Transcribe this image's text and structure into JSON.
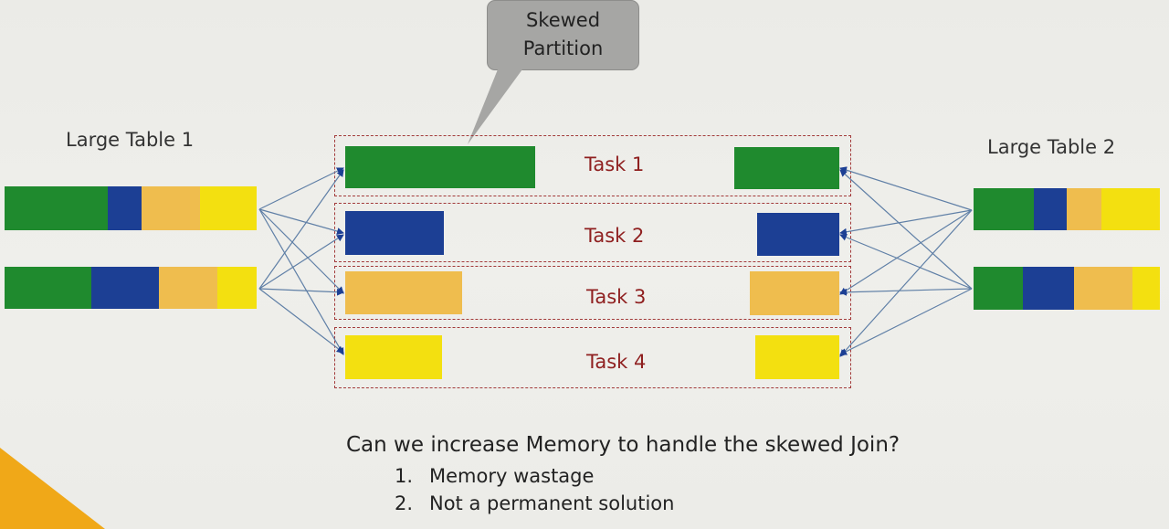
{
  "left_table": {
    "label": "Large Table 1"
  },
  "right_table": {
    "label": "Large Table 2"
  },
  "callout": {
    "line1": "Skewed",
    "line2": "Partition"
  },
  "tasks": [
    {
      "label": "Task 1",
      "color": "#1f8a2e"
    },
    {
      "label": "Task 2",
      "color": "#1c3f94"
    },
    {
      "label": "Task 3",
      "color": "#efbd4e"
    },
    {
      "label": "Task 4",
      "color": "#f3e010"
    }
  ],
  "question": "Can we increase Memory to handle the skewed Join?",
  "answers": [
    {
      "num": "1.",
      "text": "Memory wastage"
    },
    {
      "num": "2.",
      "text": "Not a permanent solution"
    }
  ],
  "colors": {
    "green": "#1f8a2e",
    "blue": "#1c3f94",
    "orange": "#efbd4e",
    "yellow": "#f3e010",
    "task_border": "#a23a3a",
    "task_text": "#8f1f1f",
    "arrow": "#5f7fa6",
    "corner_accent": "#f0a818"
  }
}
